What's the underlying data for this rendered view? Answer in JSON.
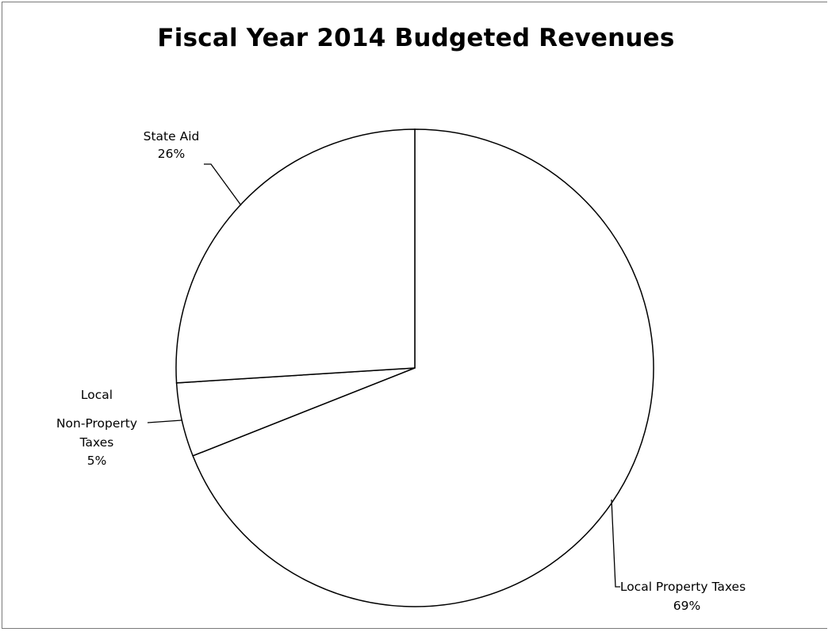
{
  "chart_data": {
    "type": "pie",
    "title": "Fiscal Year 2014 Budgeted Revenues",
    "slices": [
      {
        "label": "Local Property Taxes",
        "value": 69,
        "value_label": "69%"
      },
      {
        "label": "Local Non-Property Taxes",
        "value": 5,
        "value_label": "5%"
      },
      {
        "label": "State Aid",
        "value": 26,
        "value_label": "26%"
      }
    ],
    "labels": {
      "state_aid": [
        "State Aid",
        "26%"
      ],
      "local_non_property": [
        "Local",
        "Non-Property",
        "Taxes",
        "5%"
      ],
      "local_property": [
        "Local Property Taxes",
        "69%"
      ]
    },
    "colors": {
      "slice_fill": "#ffffff",
      "slice_stroke": "#000000"
    },
    "legend": "none"
  }
}
